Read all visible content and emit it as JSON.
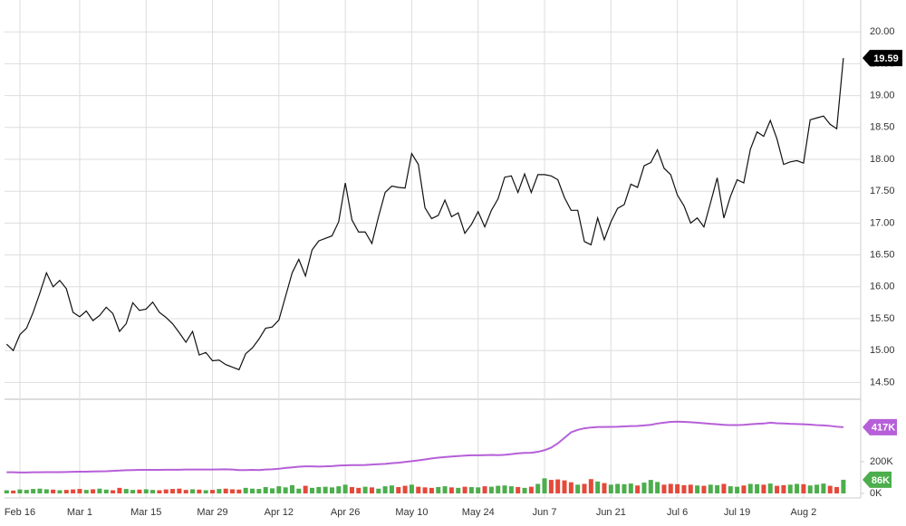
{
  "chart_data": [
    {
      "type": "line",
      "categories": [
        null,
        null,
        "Feb 16",
        null,
        null,
        null,
        null,
        null,
        null,
        null,
        null,
        "Mar 1",
        null,
        null,
        null,
        null,
        null,
        null,
        null,
        null,
        null,
        "Mar 15",
        null,
        null,
        null,
        null,
        null,
        null,
        null,
        null,
        null,
        "Mar 29",
        null,
        null,
        null,
        null,
        null,
        null,
        null,
        null,
        null,
        "Apr 12",
        null,
        null,
        null,
        null,
        null,
        null,
        null,
        null,
        null,
        "Apr 26",
        null,
        null,
        null,
        null,
        null,
        null,
        null,
        null,
        null,
        "May 10",
        null,
        null,
        null,
        null,
        null,
        null,
        null,
        null,
        null,
        "May 24",
        null,
        null,
        null,
        null,
        null,
        null,
        null,
        null,
        null,
        "Jun 7",
        null,
        null,
        null,
        null,
        null,
        null,
        null,
        null,
        null,
        "Jun 21",
        null,
        null,
        null,
        null,
        null,
        null,
        null,
        null,
        null,
        "Jul 6",
        null,
        null,
        null,
        null,
        null,
        null,
        null,
        null,
        "Jul 19",
        null,
        null,
        null,
        null,
        null,
        null,
        null,
        null,
        null,
        "Aug 2",
        null,
        null,
        null,
        null,
        null,
        null
      ],
      "series": [
        {
          "color": "#111111",
          "last_label": "19.59",
          "values": [
            15.1,
            15.0,
            15.25,
            15.35,
            15.6,
            15.9,
            16.22,
            16.0,
            16.1,
            15.97,
            15.6,
            15.53,
            15.62,
            15.47,
            15.55,
            15.68,
            15.58,
            15.3,
            15.42,
            15.75,
            15.63,
            15.65,
            15.76,
            15.6,
            15.52,
            15.42,
            15.28,
            15.13,
            15.3,
            14.93,
            14.97,
            14.84,
            14.85,
            14.78,
            14.74,
            14.7,
            14.95,
            15.04,
            15.18,
            15.35,
            15.37,
            15.48,
            15.85,
            16.22,
            16.43,
            16.17,
            16.58,
            16.72,
            16.76,
            16.8,
            17.02,
            17.63,
            17.05,
            16.86,
            16.86,
            16.68,
            17.1,
            17.48,
            17.58,
            17.56,
            17.55,
            18.09,
            17.92,
            17.24,
            17.07,
            17.12,
            17.36,
            17.1,
            17.16,
            16.84,
            16.98,
            17.18,
            16.94,
            17.2,
            17.38,
            17.72,
            17.74,
            17.48,
            17.77,
            17.48,
            17.76,
            17.76,
            17.74,
            17.68,
            17.4,
            17.2,
            17.2,
            16.71,
            16.66,
            17.08,
            16.74,
            17.02,
            17.23,
            17.29,
            17.61,
            17.56,
            17.9,
            17.95,
            18.15,
            17.86,
            17.76,
            17.44,
            17.27,
            17.0,
            17.08,
            16.94,
            17.32,
            17.71,
            17.08,
            17.42,
            17.68,
            17.63,
            18.16,
            18.43,
            18.36,
            18.61,
            18.32,
            17.92,
            17.96,
            17.98,
            17.94,
            18.62,
            18.65,
            18.68,
            18.55,
            18.48,
            19.59
          ]
        }
      ],
      "ylim": [
        14.25,
        20.5
      ],
      "yticks": [
        {
          "value": 14.5,
          "label": "14.50"
        },
        {
          "value": 15,
          "label": "15.00"
        },
        {
          "value": 15.5,
          "label": "15.50"
        },
        {
          "value": 16,
          "label": "16.00"
        },
        {
          "value": 16.5,
          "label": "16.50"
        },
        {
          "value": 17,
          "label": "17.00"
        },
        {
          "value": 17.5,
          "label": "17.50"
        },
        {
          "value": 18,
          "label": "18.00"
        },
        {
          "value": 18.5,
          "label": "18.50"
        },
        {
          "value": 19,
          "label": "19.00"
        },
        {
          "value": 19.5,
          "label": "19.50"
        },
        {
          "value": 20,
          "label": "20.00"
        }
      ],
      "grid": true
    },
    {
      "type": "bar",
      "up_color": "#4cae4c",
      "down_color": "#e5493a",
      "series": [
        {
          "color": "#4cae4c",
          "last_label": "86K",
          "values": [
            20000,
            18000,
            25000,
            22000,
            28000,
            30000,
            26000,
            24000,
            20000,
            22000,
            25000,
            28000,
            22000,
            26000,
            30000,
            24000,
            20000,
            35000,
            28000,
            22000,
            24000,
            26000,
            22000,
            20000,
            25000,
            28000,
            30000,
            22000,
            26000,
            24000,
            20000,
            22000,
            28000,
            30000,
            26000,
            24000,
            35000,
            30000,
            28000,
            40000,
            32000,
            45000,
            38000,
            52000,
            30000,
            48000,
            35000,
            40000,
            42000,
            38000,
            45000,
            55000,
            40000,
            35000,
            42000,
            38000,
            30000,
            45000,
            50000,
            40000,
            48000,
            55000,
            42000,
            38000,
            35000,
            40000,
            45000,
            38000,
            35000,
            42000,
            40000,
            38000,
            45000,
            42000,
            48000,
            50000,
            45000,
            40000,
            35000,
            42000,
            60000,
            95000,
            85000,
            88000,
            82000,
            70000,
            55000,
            60000,
            90000,
            75000,
            65000,
            55000,
            60000,
            58000,
            62000,
            50000,
            68000,
            85000,
            72000,
            55000,
            60000,
            58000,
            52000,
            55000,
            50000,
            48000,
            55000,
            52000,
            60000,
            45000,
            42000,
            50000,
            60000,
            58000,
            55000,
            62000,
            48000,
            52000,
            55000,
            60000,
            58000,
            50000,
            55000,
            62000,
            48000,
            40000,
            86000
          ]
        },
        {
          "color": "#b65fd8",
          "last_label": "417K",
          "values": [
            133000,
            133000,
            132000,
            132000,
            133000,
            133000,
            134000,
            134000,
            134000,
            135000,
            136000,
            137000,
            137000,
            138000,
            139000,
            140000,
            142000,
            144000,
            146000,
            147000,
            148000,
            148000,
            148000,
            148000,
            149000,
            149000,
            149000,
            150000,
            150000,
            150000,
            150000,
            150000,
            151000,
            152000,
            150000,
            147000,
            147000,
            148000,
            147000,
            150000,
            152000,
            155000,
            160000,
            164000,
            168000,
            170000,
            170000,
            169000,
            170000,
            172000,
            175000,
            177000,
            178000,
            178000,
            179000,
            182000,
            184000,
            186000,
            190000,
            193000,
            198000,
            203000,
            208000,
            214000,
            220000,
            225000,
            229000,
            232000,
            235000,
            238000,
            240000,
            240000,
            241000,
            242000,
            241000,
            243000,
            247000,
            252000,
            255000,
            256000,
            262000,
            272000,
            288000,
            315000,
            350000,
            385000,
            400000,
            410000,
            415000,
            418000,
            418000,
            419000,
            420000,
            422000,
            424000,
            425000,
            428000,
            432000,
            440000,
            445000,
            450000,
            452000,
            450000,
            448000,
            445000,
            442000,
            438000,
            435000,
            432000,
            430000,
            430000,
            432000,
            435000,
            438000,
            440000,
            445000,
            442000,
            440000,
            438000,
            437000,
            435000,
            433000,
            430000,
            428000,
            425000,
            420000,
            417000
          ]
        }
      ],
      "ylim": [
        0,
        570000
      ],
      "yticks": [
        {
          "value": 0,
          "label": "0K"
        },
        {
          "value": 200000,
          "label": "200K"
        }
      ]
    }
  ]
}
